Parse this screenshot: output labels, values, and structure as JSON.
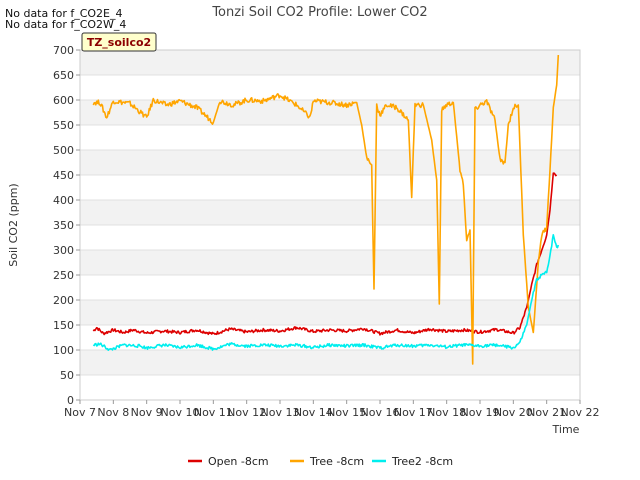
{
  "chart_data": {
    "type": "line",
    "title": "Tonzi Soil CO2 Profile: Lower CO2",
    "xlabel": "Time",
    "ylabel": "Soil CO2 (ppm)",
    "ylim": [
      0,
      700
    ],
    "xlim": [
      7,
      22
    ],
    "y_ticks": [
      0,
      50,
      100,
      150,
      200,
      250,
      300,
      350,
      400,
      450,
      500,
      550,
      600,
      650,
      700
    ],
    "y_tick_labels": [
      "0",
      "50",
      "100",
      "150",
      "200",
      "250",
      "300",
      "350",
      "400",
      "450",
      "500",
      "550",
      "600",
      "650",
      "700"
    ],
    "x_ticks": [
      7,
      8,
      9,
      10,
      11,
      12,
      13,
      14,
      15,
      16,
      17,
      18,
      19,
      20,
      21,
      22
    ],
    "x_tick_labels": [
      "Nov 7",
      "Nov 8",
      "Nov 9",
      "Nov 10",
      "Nov 11",
      "Nov 12",
      "Nov 13",
      "Nov 14",
      "Nov 15",
      "Nov 16",
      "Nov 17",
      "Nov 18",
      "Nov 19",
      "Nov 20",
      "Nov 21",
      "Nov 22"
    ],
    "grid": "horizontal bands",
    "legend_position": "bottom",
    "notes": [
      "No data for f_CO2E_4",
      "No data for f_CO2W_4"
    ],
    "tag_label": "TZ_soilco2",
    "series": [
      {
        "name": "Open -8cm",
        "color": "#dd0000",
        "points": [
          [
            7.4,
            138
          ],
          [
            7.5,
            145
          ],
          [
            7.7,
            133
          ],
          [
            8.0,
            140
          ],
          [
            8.3,
            135
          ],
          [
            8.6,
            140
          ],
          [
            9.0,
            134
          ],
          [
            9.5,
            138
          ],
          [
            10.0,
            135
          ],
          [
            10.5,
            140
          ],
          [
            11.0,
            132
          ],
          [
            11.5,
            142
          ],
          [
            12.0,
            136
          ],
          [
            12.5,
            140
          ],
          [
            13.0,
            138
          ],
          [
            13.5,
            145
          ],
          [
            14.0,
            137
          ],
          [
            14.5,
            140
          ],
          [
            15.0,
            138
          ],
          [
            15.5,
            143
          ],
          [
            16.0,
            133
          ],
          [
            16.5,
            140
          ],
          [
            17.0,
            134
          ],
          [
            17.5,
            142
          ],
          [
            18.0,
            137
          ],
          [
            18.5,
            140
          ],
          [
            19.0,
            136
          ],
          [
            19.5,
            141
          ],
          [
            20.0,
            134
          ],
          [
            20.2,
            145
          ],
          [
            20.4,
            185
          ],
          [
            20.55,
            230
          ],
          [
            20.7,
            270
          ],
          [
            20.85,
            300
          ],
          [
            21.0,
            330
          ],
          [
            21.1,
            380
          ],
          [
            21.2,
            455
          ],
          [
            21.3,
            450
          ]
        ]
      },
      {
        "name": "Tree -8cm",
        "color": "#ffa500",
        "points": [
          [
            7.4,
            595
          ],
          [
            7.6,
            595
          ],
          [
            7.8,
            565
          ],
          [
            8.0,
            598
          ],
          [
            8.5,
            593
          ],
          [
            9.0,
            565
          ],
          [
            9.2,
            600
          ],
          [
            9.6,
            590
          ],
          [
            10.0,
            598
          ],
          [
            10.5,
            585
          ],
          [
            11.0,
            555
          ],
          [
            11.2,
            598
          ],
          [
            11.6,
            590
          ],
          [
            12.0,
            600
          ],
          [
            12.5,
            598
          ],
          [
            13.0,
            610
          ],
          [
            13.5,
            590
          ],
          [
            13.9,
            565
          ],
          [
            14.0,
            598
          ],
          [
            14.5,
            595
          ],
          [
            15.0,
            590
          ],
          [
            15.3,
            595
          ],
          [
            15.45,
            550
          ],
          [
            15.6,
            485
          ],
          [
            15.75,
            470
          ],
          [
            15.82,
            222
          ],
          [
            15.9,
            590
          ],
          [
            16.0,
            570
          ],
          [
            16.2,
            590
          ],
          [
            16.5,
            585
          ],
          [
            16.85,
            560
          ],
          [
            16.95,
            405
          ],
          [
            17.05,
            590
          ],
          [
            17.3,
            590
          ],
          [
            17.55,
            520
          ],
          [
            17.7,
            440
          ],
          [
            17.78,
            192
          ],
          [
            17.85,
            580
          ],
          [
            18.0,
            590
          ],
          [
            18.2,
            595
          ],
          [
            18.4,
            460
          ],
          [
            18.5,
            430
          ],
          [
            18.6,
            318
          ],
          [
            18.7,
            340
          ],
          [
            18.78,
            72
          ],
          [
            18.85,
            580
          ],
          [
            19.0,
            590
          ],
          [
            19.2,
            597
          ],
          [
            19.45,
            560
          ],
          [
            19.6,
            480
          ],
          [
            19.75,
            475
          ],
          [
            19.85,
            550
          ],
          [
            20.0,
            585
          ],
          [
            20.15,
            590
          ],
          [
            20.3,
            330
          ],
          [
            20.45,
            185
          ],
          [
            20.6,
            135
          ],
          [
            20.75,
            275
          ],
          [
            20.85,
            330
          ],
          [
            21.0,
            345
          ],
          [
            21.1,
            460
          ],
          [
            21.2,
            585
          ],
          [
            21.3,
            630
          ],
          [
            21.35,
            690
          ]
        ]
      },
      {
        "name": "Tree2 -8cm",
        "color": "#00eeee",
        "points": [
          [
            7.4,
            110
          ],
          [
            7.6,
            112
          ],
          [
            7.9,
            100
          ],
          [
            8.3,
            110
          ],
          [
            8.8,
            108
          ],
          [
            9.0,
            104
          ],
          [
            9.5,
            110
          ],
          [
            10.0,
            105
          ],
          [
            10.5,
            110
          ],
          [
            11.0,
            102
          ],
          [
            11.5,
            112
          ],
          [
            12.0,
            108
          ],
          [
            12.5,
            110
          ],
          [
            13.0,
            108
          ],
          [
            13.5,
            110
          ],
          [
            14.0,
            105
          ],
          [
            14.5,
            110
          ],
          [
            15.0,
            108
          ],
          [
            15.5,
            110
          ],
          [
            16.0,
            104
          ],
          [
            16.5,
            110
          ],
          [
            17.0,
            108
          ],
          [
            17.5,
            110
          ],
          [
            18.0,
            106
          ],
          [
            18.5,
            110
          ],
          [
            19.0,
            108
          ],
          [
            19.5,
            110
          ],
          [
            20.0,
            104
          ],
          [
            20.2,
            115
          ],
          [
            20.4,
            150
          ],
          [
            20.55,
            200
          ],
          [
            20.7,
            240
          ],
          [
            20.85,
            250
          ],
          [
            21.0,
            255
          ],
          [
            21.1,
            290
          ],
          [
            21.2,
            330
          ],
          [
            21.3,
            305
          ],
          [
            21.35,
            310
          ]
        ]
      }
    ]
  }
}
